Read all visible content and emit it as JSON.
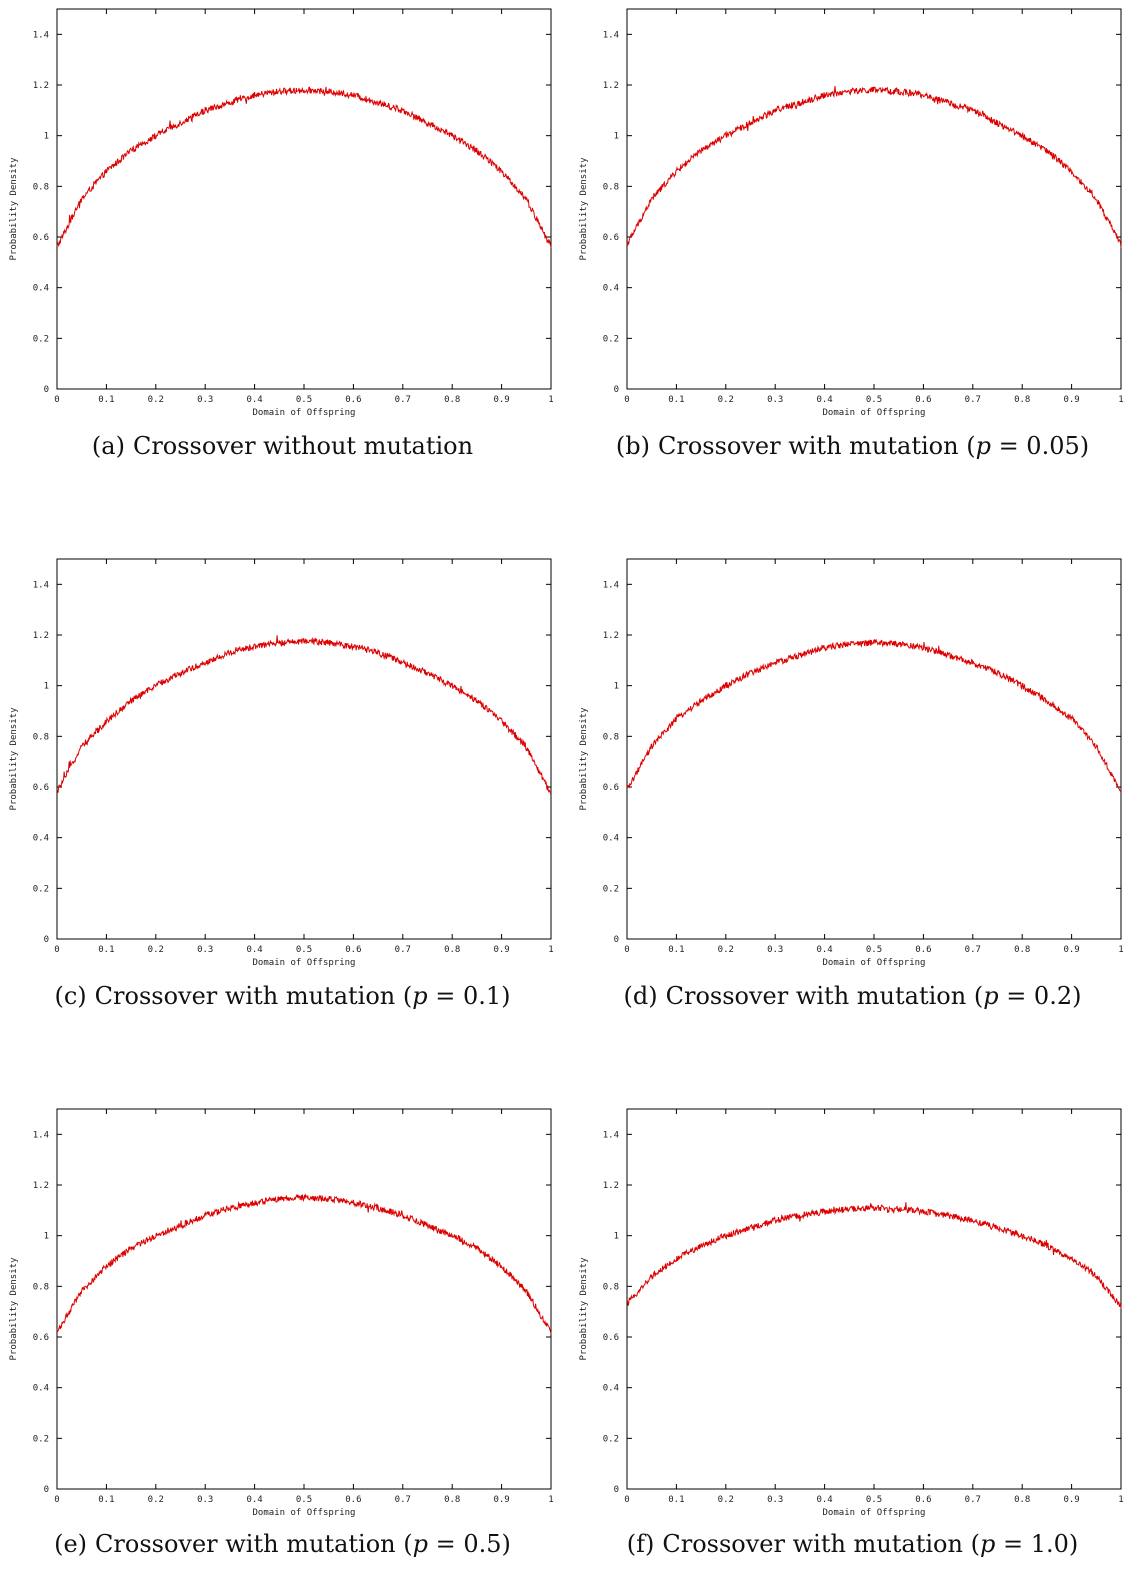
{
  "chart_data": [
    {
      "type": "line",
      "label": "(a)",
      "caption_prefix": "Crossover without mutation",
      "caption_p": "",
      "caption_suffix": "",
      "xlabel": "Domain of Offspring",
      "ylabel": "Probability Density",
      "xlim": [
        0,
        1
      ],
      "ylim": [
        0,
        1.5
      ],
      "xticks": [
        0,
        0.1,
        0.2,
        0.3,
        0.4,
        0.5,
        0.6,
        0.7,
        0.8,
        0.9,
        1
      ],
      "yticks": [
        0,
        0.2,
        0.4,
        0.6,
        0.8,
        1,
        1.2,
        1.4
      ],
      "series_color": "#dd0000",
      "x": [
        0,
        0.05,
        0.1,
        0.15,
        0.2,
        0.25,
        0.3,
        0.35,
        0.4,
        0.45,
        0.5,
        0.55,
        0.6,
        0.65,
        0.7,
        0.75,
        0.8,
        0.85,
        0.9,
        0.95,
        1
      ],
      "y": [
        0.56,
        0.75,
        0.86,
        0.94,
        1.0,
        1.05,
        1.1,
        1.13,
        1.16,
        1.175,
        1.18,
        1.175,
        1.16,
        1.13,
        1.1,
        1.05,
        1.0,
        0.94,
        0.86,
        0.75,
        0.56
      ]
    },
    {
      "type": "line",
      "label": "(b)",
      "caption_prefix": "Crossover with mutation (",
      "caption_p": "p",
      "caption_suffix": " = 0.05)",
      "xlabel": "Domain of Offspring",
      "ylabel": "Probability Density",
      "xlim": [
        0,
        1
      ],
      "ylim": [
        0,
        1.5
      ],
      "xticks": [
        0,
        0.1,
        0.2,
        0.3,
        0.4,
        0.5,
        0.6,
        0.7,
        0.8,
        0.9,
        1
      ],
      "yticks": [
        0,
        0.2,
        0.4,
        0.6,
        0.8,
        1,
        1.2,
        1.4
      ],
      "series_color": "#dd0000",
      "x": [
        0,
        0.05,
        0.1,
        0.15,
        0.2,
        0.25,
        0.3,
        0.35,
        0.4,
        0.45,
        0.5,
        0.55,
        0.6,
        0.65,
        0.7,
        0.75,
        0.8,
        0.85,
        0.9,
        0.95,
        1
      ],
      "y": [
        0.57,
        0.75,
        0.86,
        0.94,
        1.0,
        1.05,
        1.1,
        1.13,
        1.16,
        1.175,
        1.18,
        1.175,
        1.16,
        1.13,
        1.1,
        1.05,
        1.0,
        0.94,
        0.86,
        0.75,
        0.57
      ]
    },
    {
      "type": "line",
      "label": "(c)",
      "caption_prefix": "Crossover with mutation (",
      "caption_p": "p",
      "caption_suffix": " = 0.1)",
      "xlabel": "Domain of Offspring",
      "ylabel": "Probability Density",
      "xlim": [
        0,
        1
      ],
      "ylim": [
        0,
        1.5
      ],
      "xticks": [
        0,
        0.1,
        0.2,
        0.3,
        0.4,
        0.5,
        0.6,
        0.7,
        0.8,
        0.9,
        1
      ],
      "yticks": [
        0,
        0.2,
        0.4,
        0.6,
        0.8,
        1,
        1.2,
        1.4
      ],
      "series_color": "#dd0000",
      "x": [
        0,
        0.05,
        0.1,
        0.15,
        0.2,
        0.25,
        0.3,
        0.35,
        0.4,
        0.45,
        0.5,
        0.55,
        0.6,
        0.65,
        0.7,
        0.75,
        0.8,
        0.85,
        0.9,
        0.95,
        1
      ],
      "y": [
        0.58,
        0.76,
        0.86,
        0.94,
        1.0,
        1.05,
        1.09,
        1.13,
        1.155,
        1.17,
        1.175,
        1.17,
        1.155,
        1.13,
        1.09,
        1.05,
        1.0,
        0.94,
        0.86,
        0.76,
        0.57
      ]
    },
    {
      "type": "line",
      "label": "(d)",
      "caption_prefix": "Crossover with mutation (",
      "caption_p": "p",
      "caption_suffix": " = 0.2)",
      "xlabel": "Domain of Offspring",
      "ylabel": "Probability Density",
      "xlim": [
        0,
        1
      ],
      "ylim": [
        0,
        1.5
      ],
      "xticks": [
        0,
        0.1,
        0.2,
        0.3,
        0.4,
        0.5,
        0.6,
        0.7,
        0.8,
        0.9,
        1
      ],
      "yticks": [
        0,
        0.2,
        0.4,
        0.6,
        0.8,
        1,
        1.2,
        1.4
      ],
      "series_color": "#dd0000",
      "x": [
        0,
        0.05,
        0.1,
        0.15,
        0.2,
        0.25,
        0.3,
        0.35,
        0.4,
        0.45,
        0.5,
        0.55,
        0.6,
        0.65,
        0.7,
        0.75,
        0.8,
        0.85,
        0.9,
        0.95,
        1
      ],
      "y": [
        0.59,
        0.76,
        0.87,
        0.94,
        1.0,
        1.05,
        1.09,
        1.12,
        1.15,
        1.165,
        1.17,
        1.165,
        1.15,
        1.12,
        1.09,
        1.05,
        1.0,
        0.94,
        0.87,
        0.76,
        0.58
      ]
    },
    {
      "type": "line",
      "label": "(e)",
      "caption_prefix": "Crossover with mutation (",
      "caption_p": "p",
      "caption_suffix": " = 0.5)",
      "xlabel": "Domain of Offspring",
      "ylabel": "Probability Density",
      "xlim": [
        0,
        1
      ],
      "ylim": [
        0,
        1.5
      ],
      "xticks": [
        0,
        0.1,
        0.2,
        0.3,
        0.4,
        0.5,
        0.6,
        0.7,
        0.8,
        0.9,
        1
      ],
      "yticks": [
        0,
        0.2,
        0.4,
        0.6,
        0.8,
        1,
        1.2,
        1.4
      ],
      "series_color": "#dd0000",
      "x": [
        0,
        0.05,
        0.1,
        0.15,
        0.2,
        0.25,
        0.3,
        0.35,
        0.4,
        0.45,
        0.5,
        0.55,
        0.6,
        0.65,
        0.7,
        0.75,
        0.8,
        0.85,
        0.9,
        0.95,
        1
      ],
      "y": [
        0.62,
        0.78,
        0.88,
        0.95,
        1.0,
        1.04,
        1.08,
        1.11,
        1.13,
        1.145,
        1.15,
        1.145,
        1.13,
        1.11,
        1.08,
        1.04,
        1.0,
        0.95,
        0.88,
        0.78,
        0.62
      ]
    },
    {
      "type": "line",
      "label": "(f)",
      "caption_prefix": "Crossover with mutation (",
      "caption_p": "p",
      "caption_suffix": " = 1.0)",
      "xlabel": "Domain of Offspring",
      "ylabel": "Probability Density",
      "xlim": [
        0,
        1
      ],
      "ylim": [
        0,
        1.5
      ],
      "xticks": [
        0,
        0.1,
        0.2,
        0.3,
        0.4,
        0.5,
        0.6,
        0.7,
        0.8,
        0.9,
        1
      ],
      "yticks": [
        0,
        0.2,
        0.4,
        0.6,
        0.8,
        1,
        1.2,
        1.4
      ],
      "series_color": "#dd0000",
      "x": [
        0,
        0.05,
        0.1,
        0.15,
        0.2,
        0.25,
        0.3,
        0.35,
        0.4,
        0.45,
        0.5,
        0.55,
        0.6,
        0.65,
        0.7,
        0.75,
        0.8,
        0.85,
        0.9,
        0.95,
        1
      ],
      "y": [
        0.73,
        0.84,
        0.91,
        0.96,
        1.0,
        1.03,
        1.06,
        1.08,
        1.095,
        1.105,
        1.11,
        1.105,
        1.095,
        1.08,
        1.06,
        1.03,
        1.0,
        0.96,
        0.91,
        0.84,
        0.72
      ]
    }
  ]
}
